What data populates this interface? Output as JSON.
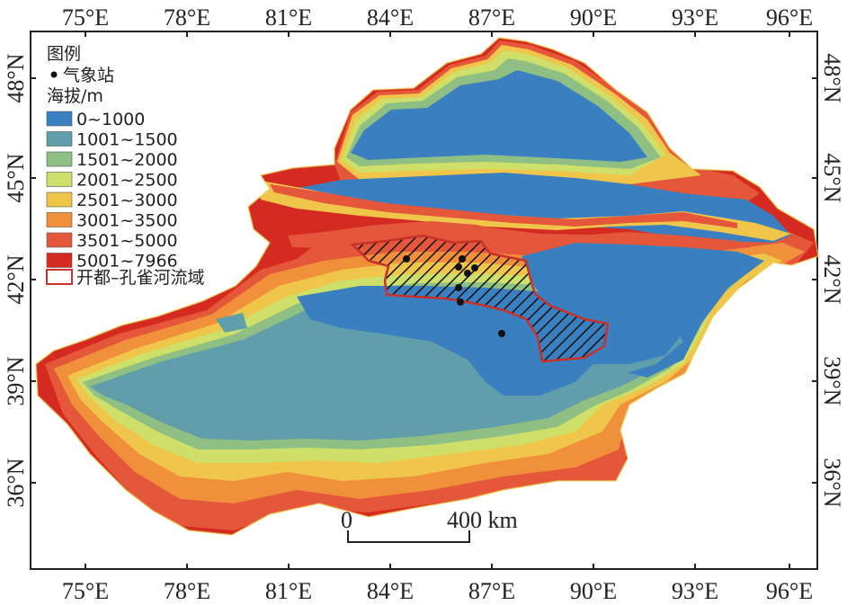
{
  "map": {
    "longitude_ticks": [
      "75°E",
      "78°E",
      "81°E",
      "84°E",
      "87°E",
      "90°E",
      "93°E",
      "96°E"
    ],
    "latitude_ticks": [
      "48°N",
      "45°N",
      "42°N",
      "39°N",
      "36°N"
    ],
    "legend": {
      "title": "图例",
      "station_label": "气象站",
      "elevation_title": "海拔/m",
      "classes": [
        {
          "label": "0~1000",
          "color": "#3a7fbf"
        },
        {
          "label": "1001~1500",
          "color": "#5f9eaa"
        },
        {
          "label": "1501~2000",
          "color": "#8fbf82"
        },
        {
          "label": "2001~2500",
          "color": "#cfe06a"
        },
        {
          "label": "2501~3000",
          "color": "#f0c64a"
        },
        {
          "label": "3001~3500",
          "color": "#f0903a"
        },
        {
          "label": "3501~5000",
          "color": "#e5573a"
        },
        {
          "label": "5001~7966",
          "color": "#d42a22"
        }
      ],
      "basin_label": "开都–孔雀河流域",
      "basin_color": "#c8302a"
    },
    "scale_bar": {
      "start_label": "0",
      "end_label": "400 km"
    }
  }
}
